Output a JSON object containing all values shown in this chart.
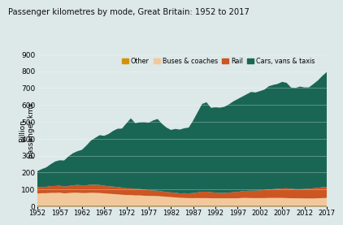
{
  "title": "Passenger kilometres by mode, Great Britain: 1952 to 2017",
  "ylabel": "Billion\npassenger kms",
  "background_color": "#dde8e8",
  "years": [
    1952,
    1953,
    1954,
    1955,
    1956,
    1957,
    1958,
    1959,
    1960,
    1961,
    1962,
    1963,
    1964,
    1965,
    1966,
    1967,
    1968,
    1969,
    1970,
    1971,
    1972,
    1973,
    1974,
    1975,
    1976,
    1977,
    1978,
    1979,
    1980,
    1981,
    1982,
    1983,
    1984,
    1985,
    1986,
    1987,
    1988,
    1989,
    1990,
    1991,
    1992,
    1993,
    1994,
    1995,
    1996,
    1997,
    1998,
    1999,
    2000,
    2001,
    2002,
    2003,
    2004,
    2005,
    2006,
    2007,
    2008,
    2009,
    2010,
    2011,
    2012,
    2013,
    2014,
    2015,
    2016,
    2017
  ],
  "other": [
    5,
    5,
    5,
    5,
    5,
    5,
    5,
    5,
    5,
    5,
    5,
    5,
    5,
    5,
    5,
    5,
    5,
    5,
    5,
    5,
    5,
    5,
    5,
    5,
    5,
    5,
    5,
    5,
    5,
    5,
    5,
    5,
    5,
    5,
    5,
    5,
    5,
    5,
    5,
    5,
    5,
    5,
    5,
    5,
    5,
    5,
    5,
    5,
    5,
    5,
    5,
    5,
    5,
    5,
    5,
    5,
    5,
    5,
    5,
    5,
    5,
    5,
    5,
    5,
    5,
    5
  ],
  "buses": [
    70,
    72,
    72,
    74,
    74,
    75,
    71,
    73,
    75,
    75,
    73,
    73,
    75,
    74,
    73,
    71,
    69,
    67,
    65,
    63,
    61,
    61,
    59,
    59,
    57,
    56,
    56,
    55,
    53,
    51,
    49,
    47,
    45,
    44,
    43,
    43,
    43,
    43,
    43,
    42,
    42,
    42,
    42,
    42,
    42,
    42,
    44,
    44,
    43,
    43,
    43,
    43,
    44,
    44,
    44,
    44,
    43,
    42,
    42,
    42,
    41,
    41,
    41,
    42,
    43,
    44
  ],
  "rail": [
    38,
    38,
    38,
    40,
    41,
    42,
    40,
    42,
    44,
    46,
    46,
    46,
    48,
    48,
    48,
    46,
    44,
    44,
    44,
    42,
    40,
    40,
    38,
    38,
    36,
    34,
    32,
    32,
    30,
    28,
    28,
    28,
    26,
    28,
    28,
    30,
    34,
    38,
    38,
    36,
    34,
    32,
    32,
    34,
    36,
    38,
    40,
    42,
    44,
    44,
    46,
    48,
    50,
    52,
    54,
    56,
    58,
    56,
    54,
    54,
    56,
    58,
    60,
    62,
    64,
    66
  ],
  "cars": [
    95,
    105,
    115,
    130,
    145,
    150,
    155,
    175,
    190,
    200,
    210,
    235,
    260,
    278,
    295,
    295,
    310,
    330,
    345,
    350,
    385,
    415,
    390,
    395,
    400,
    400,
    415,
    425,
    400,
    382,
    370,
    378,
    378,
    385,
    390,
    430,
    475,
    520,
    530,
    500,
    505,
    505,
    510,
    522,
    538,
    550,
    560,
    572,
    585,
    582,
    588,
    595,
    612,
    618,
    622,
    632,
    625,
    600,
    600,
    608,
    602,
    600,
    618,
    636,
    660,
    680
  ],
  "colors": {
    "other": "#d4920a",
    "buses": "#f2c89a",
    "rail": "#cc5522",
    "cars": "#1a6655"
  },
  "ylim": [
    0,
    900
  ],
  "yticks": [
    0,
    100,
    200,
    300,
    400,
    500,
    600,
    700,
    800,
    900
  ],
  "xtick_years": [
    1952,
    1957,
    1962,
    1967,
    1972,
    1977,
    1982,
    1987,
    1992,
    1997,
    2002,
    2007,
    2012,
    2017
  ]
}
